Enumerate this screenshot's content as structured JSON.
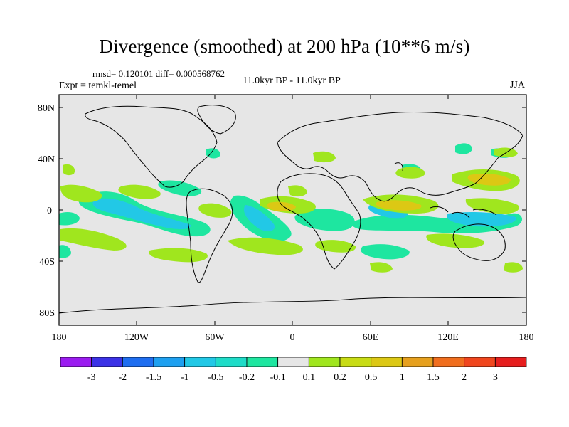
{
  "title": "Divergence (smoothed) at 200 hPa (10**6 m/s)",
  "stats": "rmsd= 0.120101 diff= 0.000568762",
  "experiment": "Expt = temkl-temel",
  "period": "11.0kyr BP - 11.0kyr BP",
  "season": "JJA",
  "lat_labels": [
    "80N",
    "40N",
    "0",
    "40S",
    "80S"
  ],
  "lon_labels": [
    "180",
    "120W",
    "60W",
    "0",
    "60E",
    "120E",
    "180"
  ],
  "colorbar": {
    "colors": [
      "#9b1cf0",
      "#3c32e6",
      "#1f6ef0",
      "#1ea0f0",
      "#22c8e6",
      "#1edcc8",
      "#1ee6a0",
      "#e6e6e6",
      "#a0e61e",
      "#c8dc14",
      "#dcc814",
      "#e6a01e",
      "#f06e1e",
      "#f0461e",
      "#e61e1e"
    ],
    "labels": [
      "-3",
      "-2",
      "-1.5",
      "-1",
      "-0.5",
      "-0.2",
      "-0.1",
      "0.1",
      "0.2",
      "0.5",
      "1",
      "1.5",
      "2",
      "3"
    ]
  }
}
